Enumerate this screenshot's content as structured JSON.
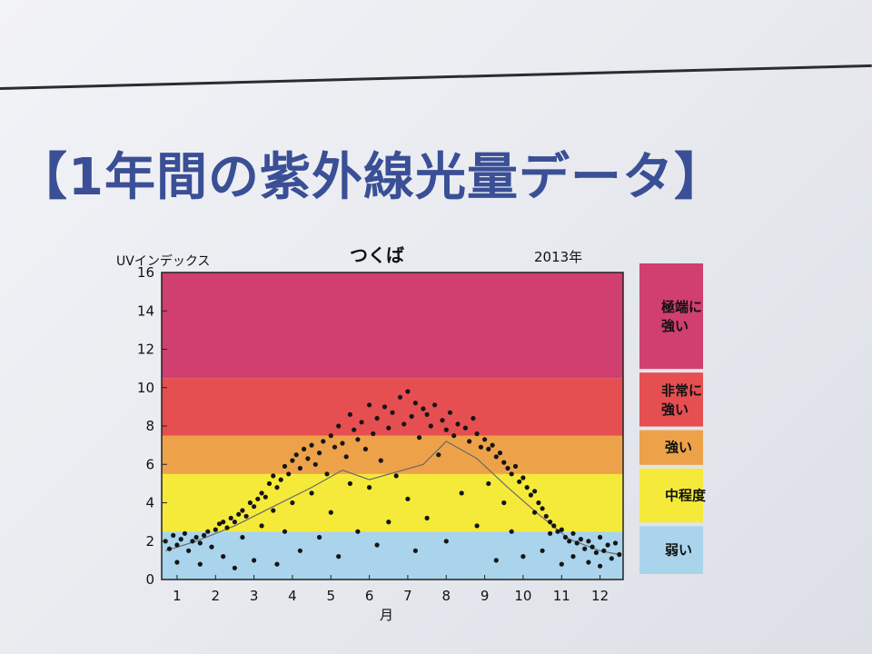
{
  "page": {
    "title": "【1年間の紫外線光量データ】"
  },
  "chart_data": {
    "type": "scatter",
    "title": "つくば",
    "year_label": "2013年",
    "ylabel": "UVインデックス",
    "xlabel": "月",
    "xlim": [
      0.6,
      12.6
    ],
    "ylim": [
      0,
      16
    ],
    "x_ticks": [
      "1",
      "2",
      "3",
      "4",
      "5",
      "6",
      "7",
      "8",
      "9",
      "10",
      "11",
      "12"
    ],
    "y_ticks": [
      "0",
      "2",
      "4",
      "6",
      "8",
      "10",
      "12",
      "14",
      "16"
    ],
    "grid": false,
    "bands": [
      {
        "label": "弱い",
        "from": 0,
        "to": 2.5,
        "color": "#a9d4ec"
      },
      {
        "label": "中程度",
        "from": 2.5,
        "to": 5.5,
        "color": "#f5ea3a"
      },
      {
        "label": "強い",
        "from": 5.5,
        "to": 7.5,
        "color": "#eda24a"
      },
      {
        "label": "非常に強い",
        "from": 7.5,
        "to": 10.5,
        "color": "#e64f52"
      },
      {
        "label": "極端に強い",
        "from": 10.5,
        "to": 16,
        "color": "#d03f6f"
      }
    ],
    "legend_placement": "right",
    "average_line": {
      "x": [
        0.7,
        1.5,
        2.5,
        3.5,
        4.5,
        5.3,
        6.0,
        6.7,
        7.4,
        8.0,
        8.8,
        9.6,
        10.4,
        11.2,
        12.0,
        12.5
      ],
      "y": [
        1.5,
        2.0,
        2.8,
        3.8,
        4.8,
        5.7,
        5.2,
        5.6,
        6.0,
        7.2,
        6.3,
        4.8,
        3.4,
        2.1,
        1.5,
        1.3
      ]
    },
    "series": [
      {
        "points": [
          [
            0.7,
            2.0
          ],
          [
            0.8,
            1.6
          ],
          [
            0.9,
            2.3
          ],
          [
            1.0,
            1.8
          ],
          [
            1.0,
            0.9
          ],
          [
            1.1,
            2.1
          ],
          [
            1.2,
            2.4
          ],
          [
            1.3,
            1.5
          ],
          [
            1.4,
            2.0
          ],
          [
            1.5,
            2.2
          ],
          [
            1.6,
            0.8
          ],
          [
            1.6,
            1.9
          ],
          [
            1.7,
            2.3
          ],
          [
            1.8,
            2.5
          ],
          [
            1.9,
            1.7
          ],
          [
            2.0,
            2.6
          ],
          [
            2.1,
            2.9
          ],
          [
            2.2,
            1.2
          ],
          [
            2.2,
            3.0
          ],
          [
            2.3,
            2.7
          ],
          [
            2.4,
            3.2
          ],
          [
            2.5,
            0.6
          ],
          [
            2.5,
            3.0
          ],
          [
            2.6,
            3.4
          ],
          [
            2.7,
            2.2
          ],
          [
            2.7,
            3.6
          ],
          [
            2.8,
            3.3
          ],
          [
            2.9,
            4.0
          ],
          [
            3.0,
            3.8
          ],
          [
            3.0,
            1.0
          ],
          [
            3.1,
            4.2
          ],
          [
            3.2,
            4.5
          ],
          [
            3.2,
            2.8
          ],
          [
            3.3,
            4.3
          ],
          [
            3.4,
            5.0
          ],
          [
            3.5,
            3.6
          ],
          [
            3.5,
            5.4
          ],
          [
            3.6,
            0.8
          ],
          [
            3.6,
            4.8
          ],
          [
            3.7,
            5.2
          ],
          [
            3.8,
            2.5
          ],
          [
            3.8,
            5.9
          ],
          [
            3.9,
            5.5
          ],
          [
            4.0,
            6.2
          ],
          [
            4.0,
            4.0
          ],
          [
            4.1,
            6.5
          ],
          [
            4.2,
            1.5
          ],
          [
            4.2,
            5.8
          ],
          [
            4.3,
            6.8
          ],
          [
            4.4,
            6.3
          ],
          [
            4.5,
            4.5
          ],
          [
            4.5,
            7.0
          ],
          [
            4.6,
            6.0
          ],
          [
            4.7,
            2.2
          ],
          [
            4.7,
            6.6
          ],
          [
            4.8,
            7.2
          ],
          [
            4.9,
            5.5
          ],
          [
            5.0,
            7.5
          ],
          [
            5.0,
            3.5
          ],
          [
            5.1,
            6.9
          ],
          [
            5.2,
            8.0
          ],
          [
            5.2,
            1.2
          ],
          [
            5.3,
            7.1
          ],
          [
            5.4,
            6.4
          ],
          [
            5.5,
            8.6
          ],
          [
            5.5,
            5.0
          ],
          [
            5.6,
            7.8
          ],
          [
            5.7,
            2.5
          ],
          [
            5.7,
            7.3
          ],
          [
            5.8,
            8.2
          ],
          [
            5.9,
            6.8
          ],
          [
            6.0,
            9.1
          ],
          [
            6.0,
            4.8
          ],
          [
            6.1,
            7.6
          ],
          [
            6.2,
            1.8
          ],
          [
            6.2,
            8.4
          ],
          [
            6.3,
            6.2
          ],
          [
            6.4,
            9.0
          ],
          [
            6.5,
            3.0
          ],
          [
            6.5,
            7.9
          ],
          [
            6.6,
            8.7
          ],
          [
            6.7,
            5.4
          ],
          [
            6.8,
            9.5
          ],
          [
            6.9,
            8.1
          ],
          [
            7.0,
            9.8
          ],
          [
            7.0,
            4.2
          ],
          [
            7.1,
            8.5
          ],
          [
            7.2,
            1.5
          ],
          [
            7.2,
            9.2
          ],
          [
            7.3,
            7.4
          ],
          [
            7.4,
            8.9
          ],
          [
            7.5,
            3.2
          ],
          [
            7.5,
            8.6
          ],
          [
            7.6,
            8.0
          ],
          [
            7.7,
            9.1
          ],
          [
            7.8,
            6.5
          ],
          [
            7.9,
            8.3
          ],
          [
            8.0,
            7.8
          ],
          [
            8.0,
            2.0
          ],
          [
            8.1,
            8.7
          ],
          [
            8.2,
            7.5
          ],
          [
            8.3,
            8.1
          ],
          [
            8.4,
            4.5
          ],
          [
            8.5,
            7.9
          ],
          [
            8.6,
            7.2
          ],
          [
            8.7,
            8.4
          ],
          [
            8.8,
            2.8
          ],
          [
            8.8,
            7.6
          ],
          [
            8.9,
            6.9
          ],
          [
            9.0,
            7.3
          ],
          [
            9.1,
            5.0
          ],
          [
            9.1,
            6.8
          ],
          [
            9.2,
            7.0
          ],
          [
            9.3,
            1.0
          ],
          [
            9.3,
            6.4
          ],
          [
            9.4,
            6.6
          ],
          [
            9.5,
            4.0
          ],
          [
            9.5,
            6.1
          ],
          [
            9.6,
            5.8
          ],
          [
            9.7,
            2.5
          ],
          [
            9.7,
            5.5
          ],
          [
            9.8,
            5.9
          ],
          [
            9.9,
            5.1
          ],
          [
            10.0,
            5.3
          ],
          [
            10.0,
            1.2
          ],
          [
            10.1,
            4.8
          ],
          [
            10.2,
            4.4
          ],
          [
            10.3,
            3.5
          ],
          [
            10.3,
            4.6
          ],
          [
            10.4,
            4.0
          ],
          [
            10.5,
            1.5
          ],
          [
            10.5,
            3.7
          ],
          [
            10.6,
            3.3
          ],
          [
            10.7,
            2.4
          ],
          [
            10.7,
            3.0
          ],
          [
            10.8,
            2.8
          ],
          [
            10.9,
            2.5
          ],
          [
            11.0,
            0.8
          ],
          [
            11.0,
            2.6
          ],
          [
            11.1,
            2.2
          ],
          [
            11.2,
            2.0
          ],
          [
            11.3,
            1.2
          ],
          [
            11.3,
            2.4
          ],
          [
            11.4,
            1.9
          ],
          [
            11.5,
            2.1
          ],
          [
            11.6,
            1.6
          ],
          [
            11.7,
            0.9
          ],
          [
            11.7,
            2.0
          ],
          [
            11.8,
            1.7
          ],
          [
            11.9,
            1.4
          ],
          [
            12.0,
            2.2
          ],
          [
            12.0,
            0.7
          ],
          [
            12.1,
            1.5
          ],
          [
            12.2,
            1.8
          ],
          [
            12.3,
            1.1
          ],
          [
            12.4,
            1.9
          ],
          [
            12.5,
            1.3
          ]
        ]
      }
    ]
  }
}
